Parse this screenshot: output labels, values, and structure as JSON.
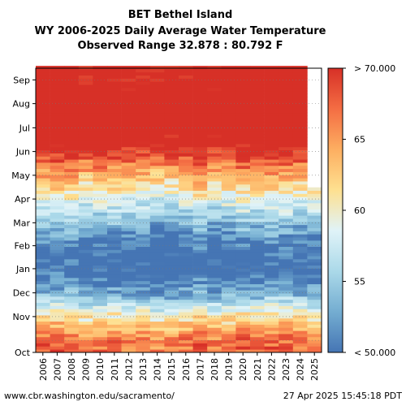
{
  "chart_data": {
    "type": "heatmap",
    "title_lines": [
      "BET Bethel Island",
      "WY 2006-2025 Daily Average Water Temperature",
      "Observed Range 32.878 : 80.792 F"
    ],
    "x_labels": [
      "2006",
      "2007",
      "2008",
      "2009",
      "2010",
      "2011",
      "2012",
      "2013",
      "2014",
      "2015",
      "2016",
      "2017",
      "2018",
      "2019",
      "2020",
      "2021",
      "2022",
      "2023",
      "2024",
      "2025"
    ],
    "y_labels": [
      "Oct",
      "Nov",
      "Dec",
      "Jan",
      "Feb",
      "Mar",
      "Apr",
      "May",
      "Jun",
      "Jul",
      "Aug",
      "Sep"
    ],
    "colorbar": {
      "min": 50,
      "max": 70,
      "tick_values": [
        50,
        55,
        60,
        65,
        70
      ],
      "tick_labels": [
        "< 50.000",
        "55",
        "60",
        "65",
        "> 70.000"
      ],
      "colors": [
        "#4575b4",
        "#74add1",
        "#abd9e9",
        "#e0f3f8",
        "#fee090",
        "#fdae61",
        "#f46d43",
        "#d73027"
      ]
    },
    "monthly_avg_temperature_F": {
      "Oct": 67,
      "Nov": 61,
      "Dec": 53,
      "Jan": 49,
      "Feb": 50,
      "Mar": 54,
      "Apr": 59,
      "May": 64,
      "Jun": 70,
      "Jul": 74,
      "Aug": 74,
      "Sep": 72
    },
    "wy2025_observed_through": "Apr"
  },
  "footer": {
    "left": "www.cbr.washington.edu/sacramento/",
    "right": "27 Apr 2025 15:45:18 PDT"
  }
}
